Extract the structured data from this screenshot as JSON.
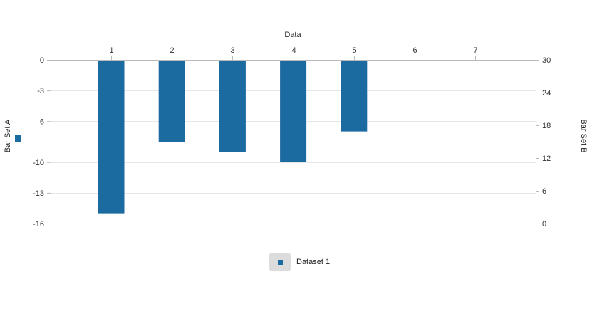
{
  "colors": {
    "bar": "#1b6aa0",
    "axis": "#bbbbbb",
    "grid": "#e6e6e6"
  },
  "chart_data": {
    "type": "bar",
    "title": "",
    "xlabel": "Data",
    "ylabel_left": "Bar Set A",
    "ylabel_right": "Bar Set B",
    "categories": [
      "1",
      "2",
      "3",
      "4",
      "5",
      "6",
      "7"
    ],
    "series": [
      {
        "name": "Dataset 1",
        "axis": "left",
        "values": [
          -15,
          -8,
          -9,
          -10,
          -7,
          null,
          null
        ]
      }
    ],
    "left_axis": {
      "ylim": [
        -16,
        0
      ],
      "ticks": [
        0,
        -3,
        -6,
        -10,
        -13,
        -16
      ],
      "tick_labels": [
        "0",
        "-3",
        "-6",
        "-10",
        "-13",
        "-16"
      ]
    },
    "right_axis": {
      "ylim": [
        0,
        30
      ],
      "ticks": [
        30,
        24,
        18,
        12,
        6,
        0
      ],
      "tick_labels": [
        "30",
        "24",
        "18",
        "12",
        "6",
        "0"
      ]
    },
    "x_axis_position": "top",
    "grid": true,
    "legend_position": "bottom-center"
  },
  "legend": {
    "items": [
      {
        "label": "Dataset 1",
        "icon": "square-swatch-icon"
      }
    ]
  }
}
